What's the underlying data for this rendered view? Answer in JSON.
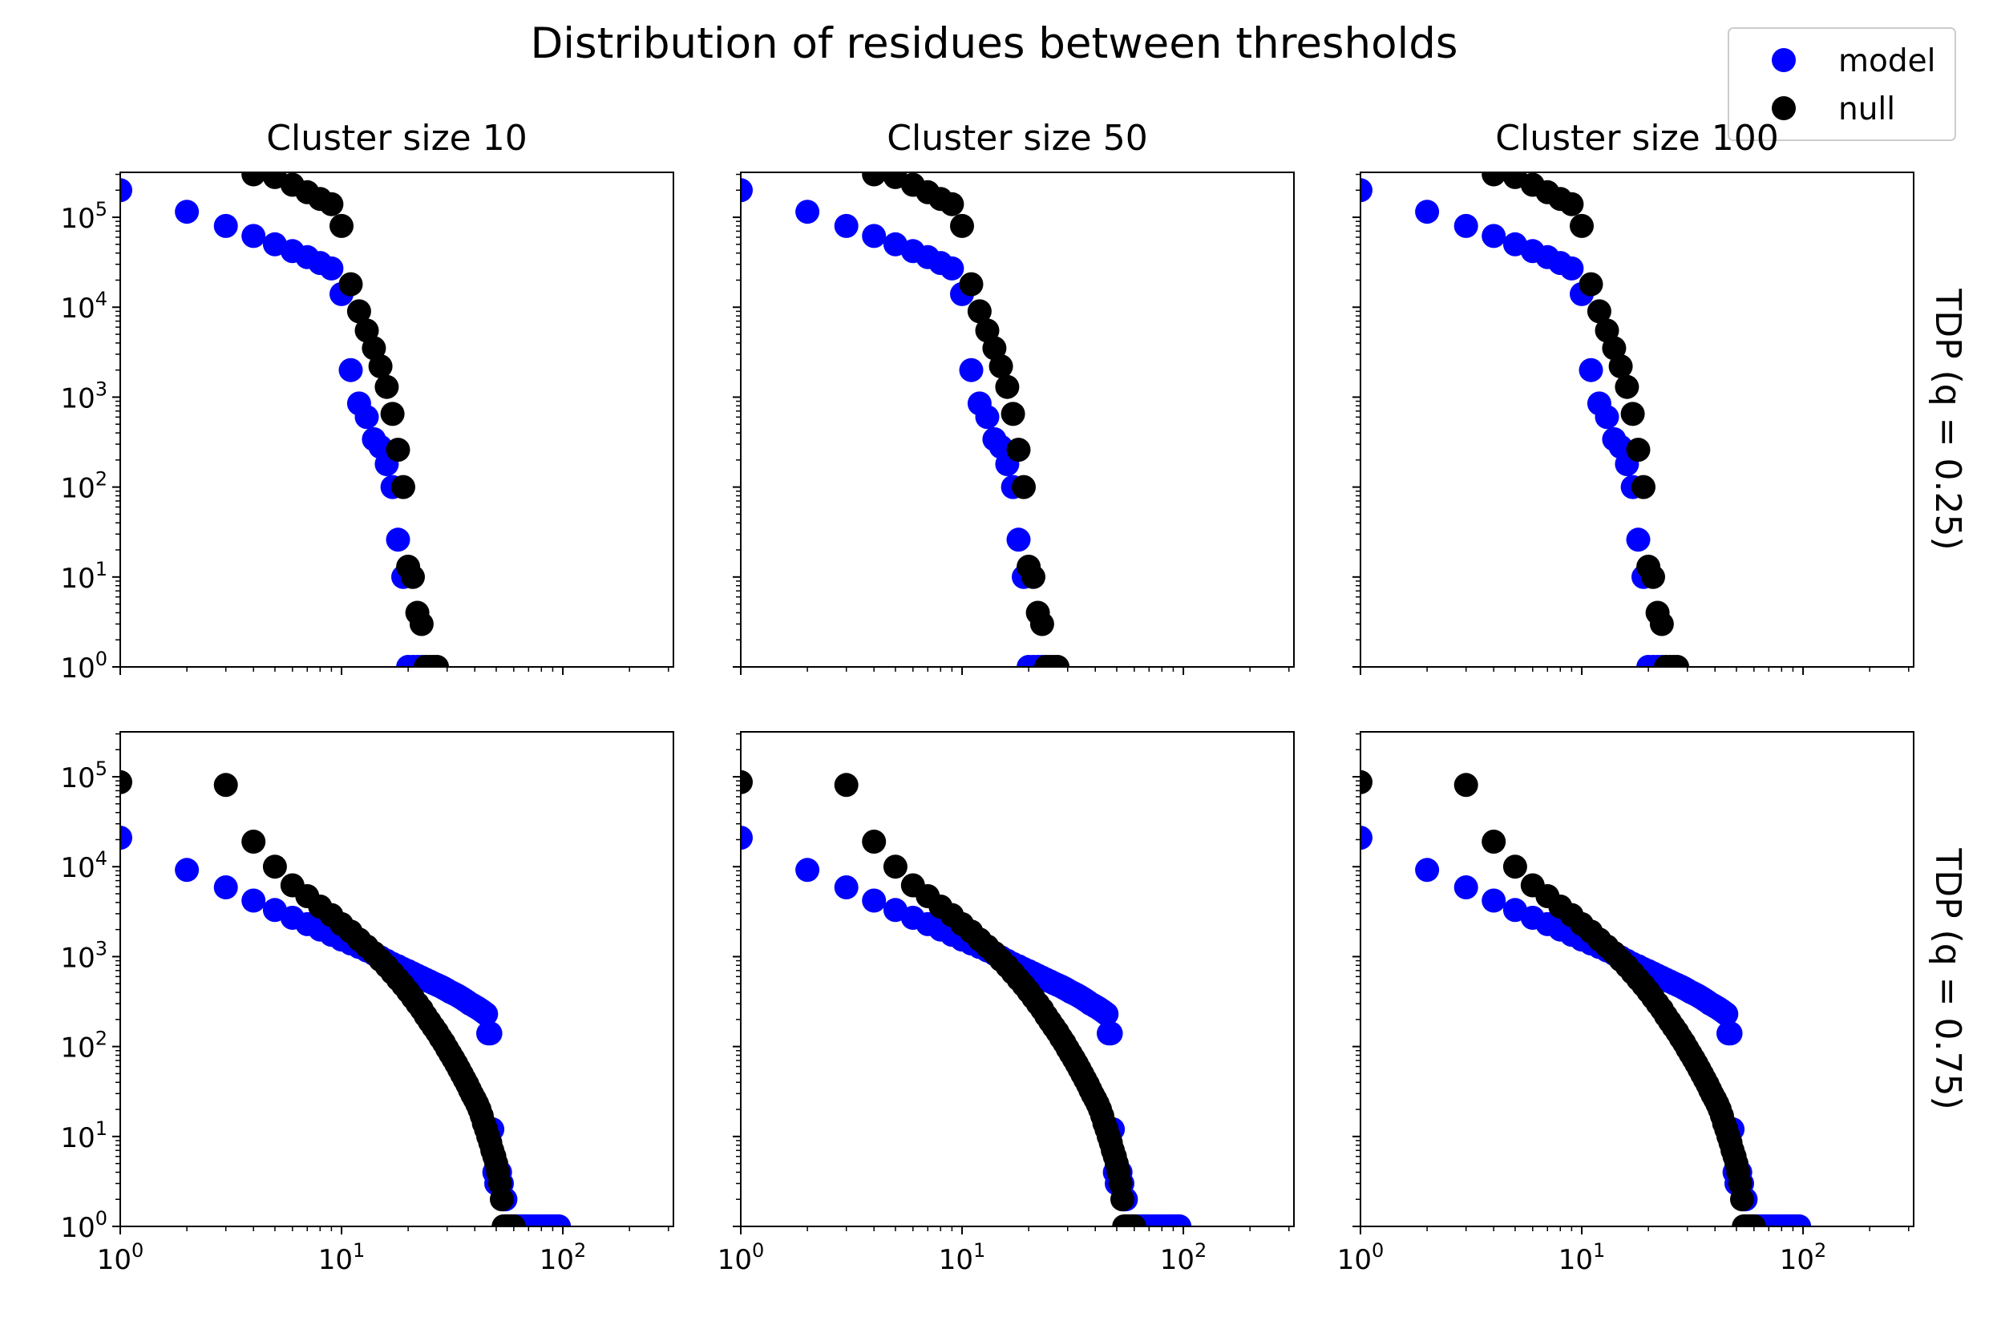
{
  "title": "Distribution of residues between thresholds",
  "legend": {
    "placement": "top-right",
    "entries": [
      {
        "label": "model",
        "color": "#0000ff"
      },
      {
        "label": "null",
        "color": "#000000"
      }
    ]
  },
  "column_titles": [
    "Cluster size 10",
    "Cluster size 50",
    "Cluster size 100"
  ],
  "row_titles": [
    "TDP (q = 0.25)",
    "TDP (q = 0.75)"
  ],
  "axes": {
    "xscale": "log",
    "yscale": "log",
    "xlim": [
      1,
      316
    ],
    "ylim": [
      1,
      316000
    ],
    "xticks": [
      {
        "value": 1,
        "base": "10",
        "exp": "0"
      },
      {
        "value": 10,
        "base": "10",
        "exp": "1"
      },
      {
        "value": 100,
        "base": "10",
        "exp": "2"
      }
    ],
    "yticks": [
      {
        "value": 1,
        "base": "10",
        "exp": "0"
      },
      {
        "value": 10,
        "base": "10",
        "exp": "1"
      },
      {
        "value": 100,
        "base": "10",
        "exp": "2"
      },
      {
        "value": 1000,
        "base": "10",
        "exp": "3"
      },
      {
        "value": 10000,
        "base": "10",
        "exp": "4"
      },
      {
        "value": 100000,
        "base": "10",
        "exp": "5"
      }
    ],
    "grid": false
  },
  "chart_data": {
    "type": "scatter",
    "rows": [
      {
        "name": "TDP (q = 0.25)",
        "note_columns_identical": true,
        "series": [
          {
            "name": "model",
            "color": "#0000ff",
            "x": [
              1,
              2,
              3,
              4,
              5,
              6,
              7,
              8,
              9,
              10,
              11,
              12,
              13,
              14,
              15,
              16,
              17,
              18,
              19,
              20,
              21,
              22,
              23
            ],
            "y": [
              200000,
              115000,
              80000,
              62000,
              50000,
              42000,
              36000,
              31000,
              27000,
              14000,
              2000,
              850,
              600,
              340,
              280,
              180,
              100,
              26,
              10,
              1,
              1,
              1,
              1
            ]
          },
          {
            "name": "null",
            "color": "#000000",
            "x": [
              4,
              5,
              6,
              7,
              8,
              9,
              10,
              11,
              12,
              13,
              14,
              15,
              16,
              17,
              18,
              19,
              20,
              21,
              22,
              23,
              24,
              25,
              26,
              27
            ],
            "y": [
              300000,
              280000,
              230000,
              190000,
              160000,
              140000,
              80000,
              18000,
              9000,
              5500,
              3500,
              2200,
              1300,
              650,
              260,
              100,
              13,
              10,
              4,
              3,
              1,
              1,
              1,
              1
            ]
          }
        ]
      },
      {
        "name": "TDP (q = 0.75)",
        "note_columns_identical": true,
        "series": [
          {
            "name": "model",
            "color": "#0000ff",
            "x": [
              1,
              2,
              3,
              4,
              5,
              6,
              7,
              8,
              9,
              10,
              11,
              12,
              13,
              14,
              15,
              16,
              17,
              18,
              19,
              20,
              21,
              22,
              23,
              24,
              25,
              26,
              27,
              28,
              29,
              30,
              31,
              32,
              33,
              34,
              35,
              36,
              37,
              38,
              39,
              40,
              41,
              42,
              43,
              44,
              45,
              46,
              47,
              48,
              49,
              50,
              51,
              52,
              53,
              54,
              55,
              56,
              57,
              58,
              59,
              60,
              61,
              62,
              64,
              66,
              68,
              70,
              72,
              74,
              76,
              78,
              80,
              82,
              84,
              86,
              88,
              90,
              92,
              94,
              96
            ],
            "y": [
              21000,
              9200,
              5900,
              4200,
              3300,
              2700,
              2300,
              2000,
              1750,
              1550,
              1400,
              1280,
              1170,
              1070,
              980,
              900,
              830,
              780,
              730,
              690,
              650,
              615,
              585,
              555,
              530,
              505,
              485,
              465,
              445,
              425,
              405,
              390,
              375,
              360,
              345,
              330,
              315,
              300,
              290,
              280,
              270,
              260,
              250,
              240,
              230,
              140,
              140,
              12,
              4,
              3,
              4,
              4,
              3,
              2,
              2,
              1,
              1,
              1,
              1,
              1,
              1,
              1,
              1,
              1,
              1,
              1,
              1,
              1,
              1,
              1,
              1,
              1,
              1,
              1,
              1,
              1,
              1,
              1,
              1
            ]
          },
          {
            "name": "null",
            "color": "#000000",
            "x": [
              1,
              3,
              4,
              5,
              6,
              7,
              8,
              9,
              10,
              11,
              12,
              13,
              14,
              15,
              16,
              17,
              18,
              19,
              20,
              21,
              22,
              23,
              24,
              25,
              26,
              27,
              28,
              29,
              30,
              31,
              32,
              33,
              34,
              35,
              36,
              37,
              38,
              39,
              40,
              41,
              42,
              43,
              44,
              45,
              46,
              47,
              48,
              49,
              50,
              51,
              52,
              53,
              54,
              55,
              56,
              57,
              58,
              59,
              60
            ],
            "y": [
              87000,
              81000,
              19000,
              10000,
              6200,
              4700,
              3600,
              2900,
              2300,
              1900,
              1550,
              1300,
              1100,
              920,
              780,
              660,
              560,
              480,
              410,
              350,
              300,
              260,
              220,
              190,
              165,
              145,
              125,
              110,
              95,
              83,
              73,
              64,
              56,
              49,
              43,
              38,
              33,
              29,
              26,
              23,
              20,
              17,
              14,
              12,
              10,
              8.5,
              7,
              6,
              5,
              4,
              3,
              2,
              1,
              1,
              1,
              1,
              1,
              1,
              1
            ]
          }
        ]
      }
    ]
  }
}
